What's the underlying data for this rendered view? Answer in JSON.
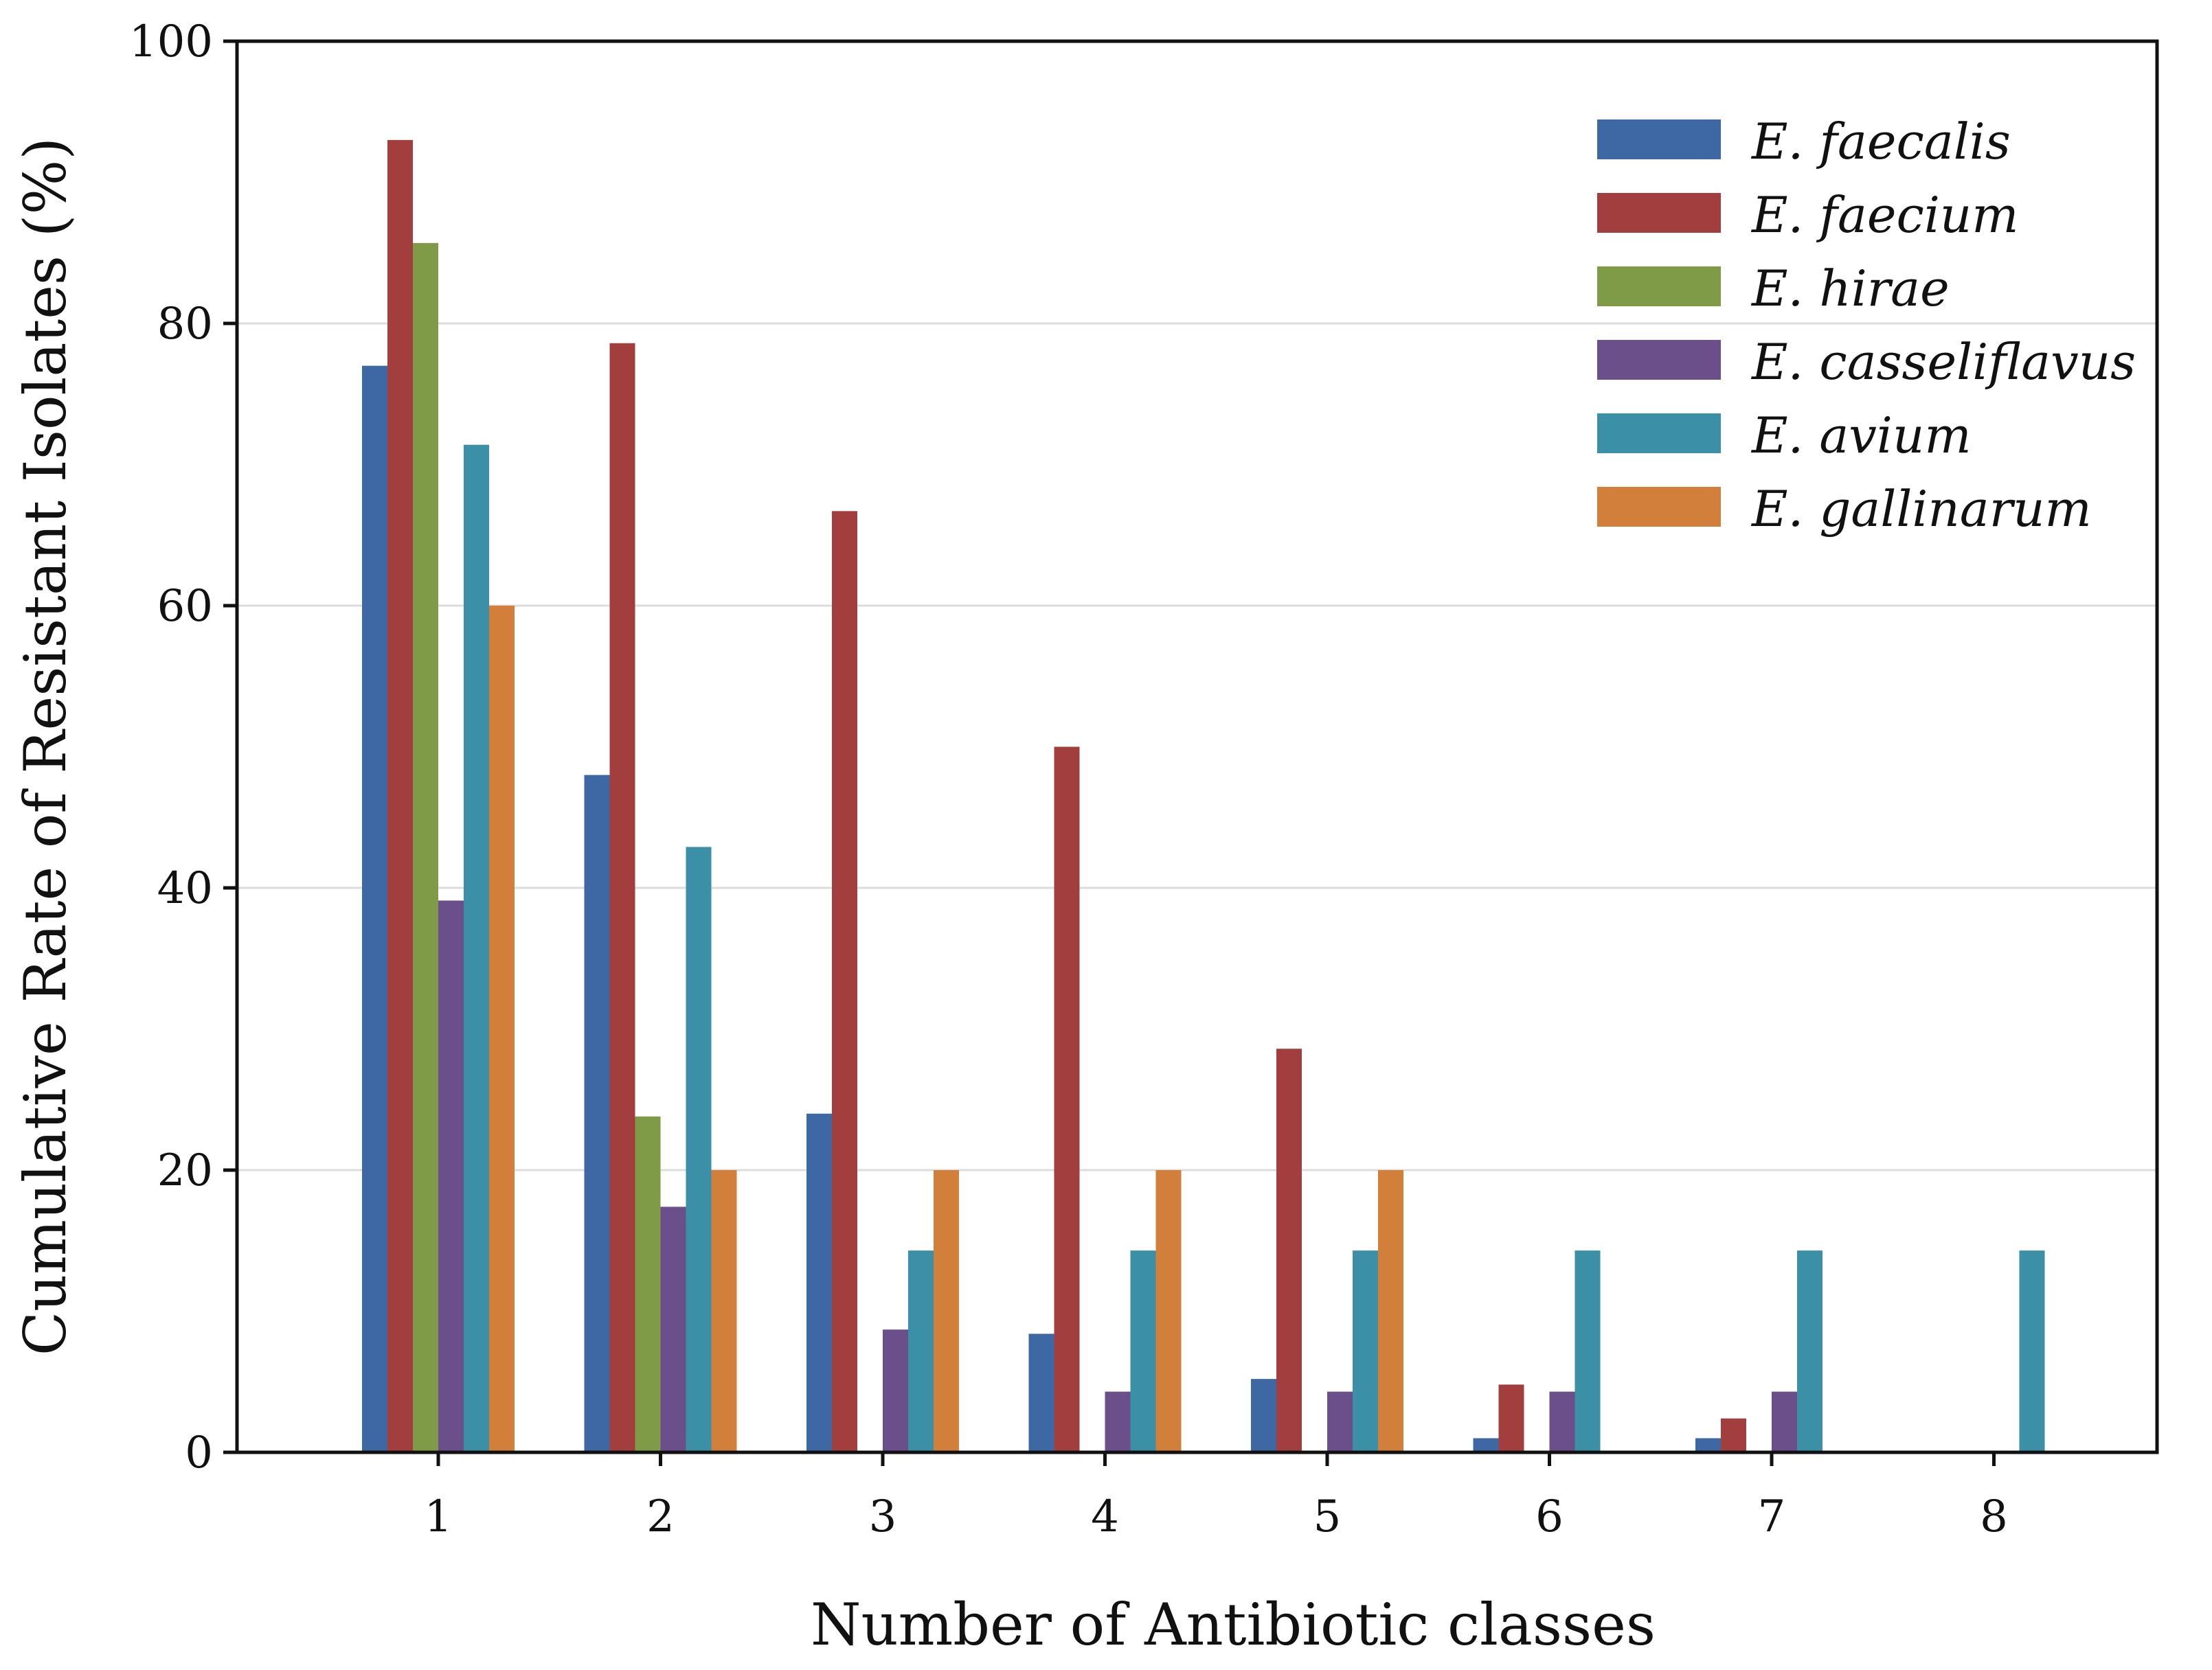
{
  "chart_data": {
    "type": "bar",
    "title": "",
    "xlabel": "Number of Antibiotic classes",
    "ylabel": "Cumulative Rate of Resistant Isolates (%)",
    "ylim": [
      0,
      100
    ],
    "yticks": [
      0,
      20,
      40,
      60,
      80,
      100
    ],
    "grid": true,
    "legend_position": "top-right",
    "categories": [
      "1",
      "2",
      "3",
      "4",
      "5",
      "6",
      "7",
      "8"
    ],
    "series": [
      {
        "name": "E. faecalis",
        "color": "#3e68a4",
        "values": [
          77,
          48,
          24,
          8.4,
          5.2,
          1,
          1,
          0
        ]
      },
      {
        "name": "E. faecium",
        "color": "#a23f3e",
        "values": [
          93,
          78.6,
          66.7,
          50,
          28.6,
          4.8,
          2.4,
          0
        ]
      },
      {
        "name": "E. hirae",
        "color": "#7f9b47",
        "values": [
          85.7,
          23.8,
          0,
          0,
          0,
          0,
          0,
          0
        ]
      },
      {
        "name": "E. casseliflavus",
        "color": "#6a4f8a",
        "values": [
          39.1,
          17.4,
          8.7,
          4.3,
          4.3,
          4.3,
          4.3,
          0
        ]
      },
      {
        "name": "E. avium",
        "color": "#3b8fa6",
        "values": [
          71.4,
          42.9,
          14.3,
          14.3,
          14.3,
          14.3,
          14.3,
          14.3
        ]
      },
      {
        "name": "E. gallinarum",
        "color": "#d17f3a",
        "values": [
          60,
          20,
          20,
          20,
          20,
          0,
          0,
          0
        ]
      }
    ]
  }
}
